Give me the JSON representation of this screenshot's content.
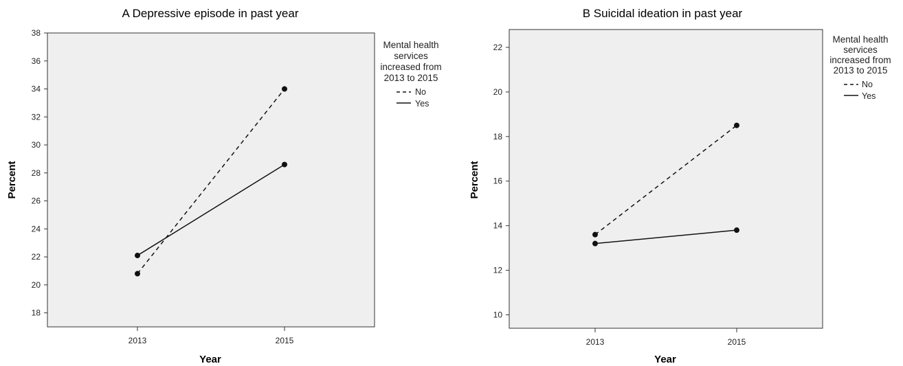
{
  "chart_data": [
    {
      "type": "line",
      "title": "A  Depressive episode in past year",
      "xlabel": "Year",
      "ylabel": "Percent",
      "categories": [
        "2013",
        "2015"
      ],
      "ylim": [
        17,
        38
      ],
      "yticks": [
        18,
        20,
        22,
        24,
        26,
        28,
        30,
        32,
        34,
        36,
        38
      ],
      "grid": false,
      "legend": {
        "title_lines": [
          "Mental health",
          "services",
          "increased from",
          "2013 to 2015"
        ],
        "placement": "top-right, outside plot"
      },
      "series": [
        {
          "name": "No",
          "style": "dashed",
          "values": [
            20.8,
            34.0
          ]
        },
        {
          "name": "Yes",
          "style": "solid",
          "values": [
            22.1,
            28.6
          ]
        }
      ]
    },
    {
      "type": "line",
      "title": "B  Suicidal ideation in past year",
      "xlabel": "Year",
      "ylabel": "Percent",
      "categories": [
        "2013",
        "2015"
      ],
      "ylim": [
        9.4,
        22.8
      ],
      "yticks": [
        10,
        12,
        14,
        16,
        18,
        20,
        22
      ],
      "grid": false,
      "legend": {
        "title_lines": [
          "Mental health",
          "services",
          "increased from",
          "2013 to 2015"
        ],
        "placement": "top-right, outside plot"
      },
      "series": [
        {
          "name": "No",
          "style": "dashed",
          "values": [
            13.6,
            18.5
          ]
        },
        {
          "name": "Yes",
          "style": "solid",
          "values": [
            13.2,
            13.8
          ]
        }
      ]
    }
  ],
  "colors": {
    "plot_bg": "#efefef",
    "line": "#111111",
    "axis": "#333333"
  }
}
